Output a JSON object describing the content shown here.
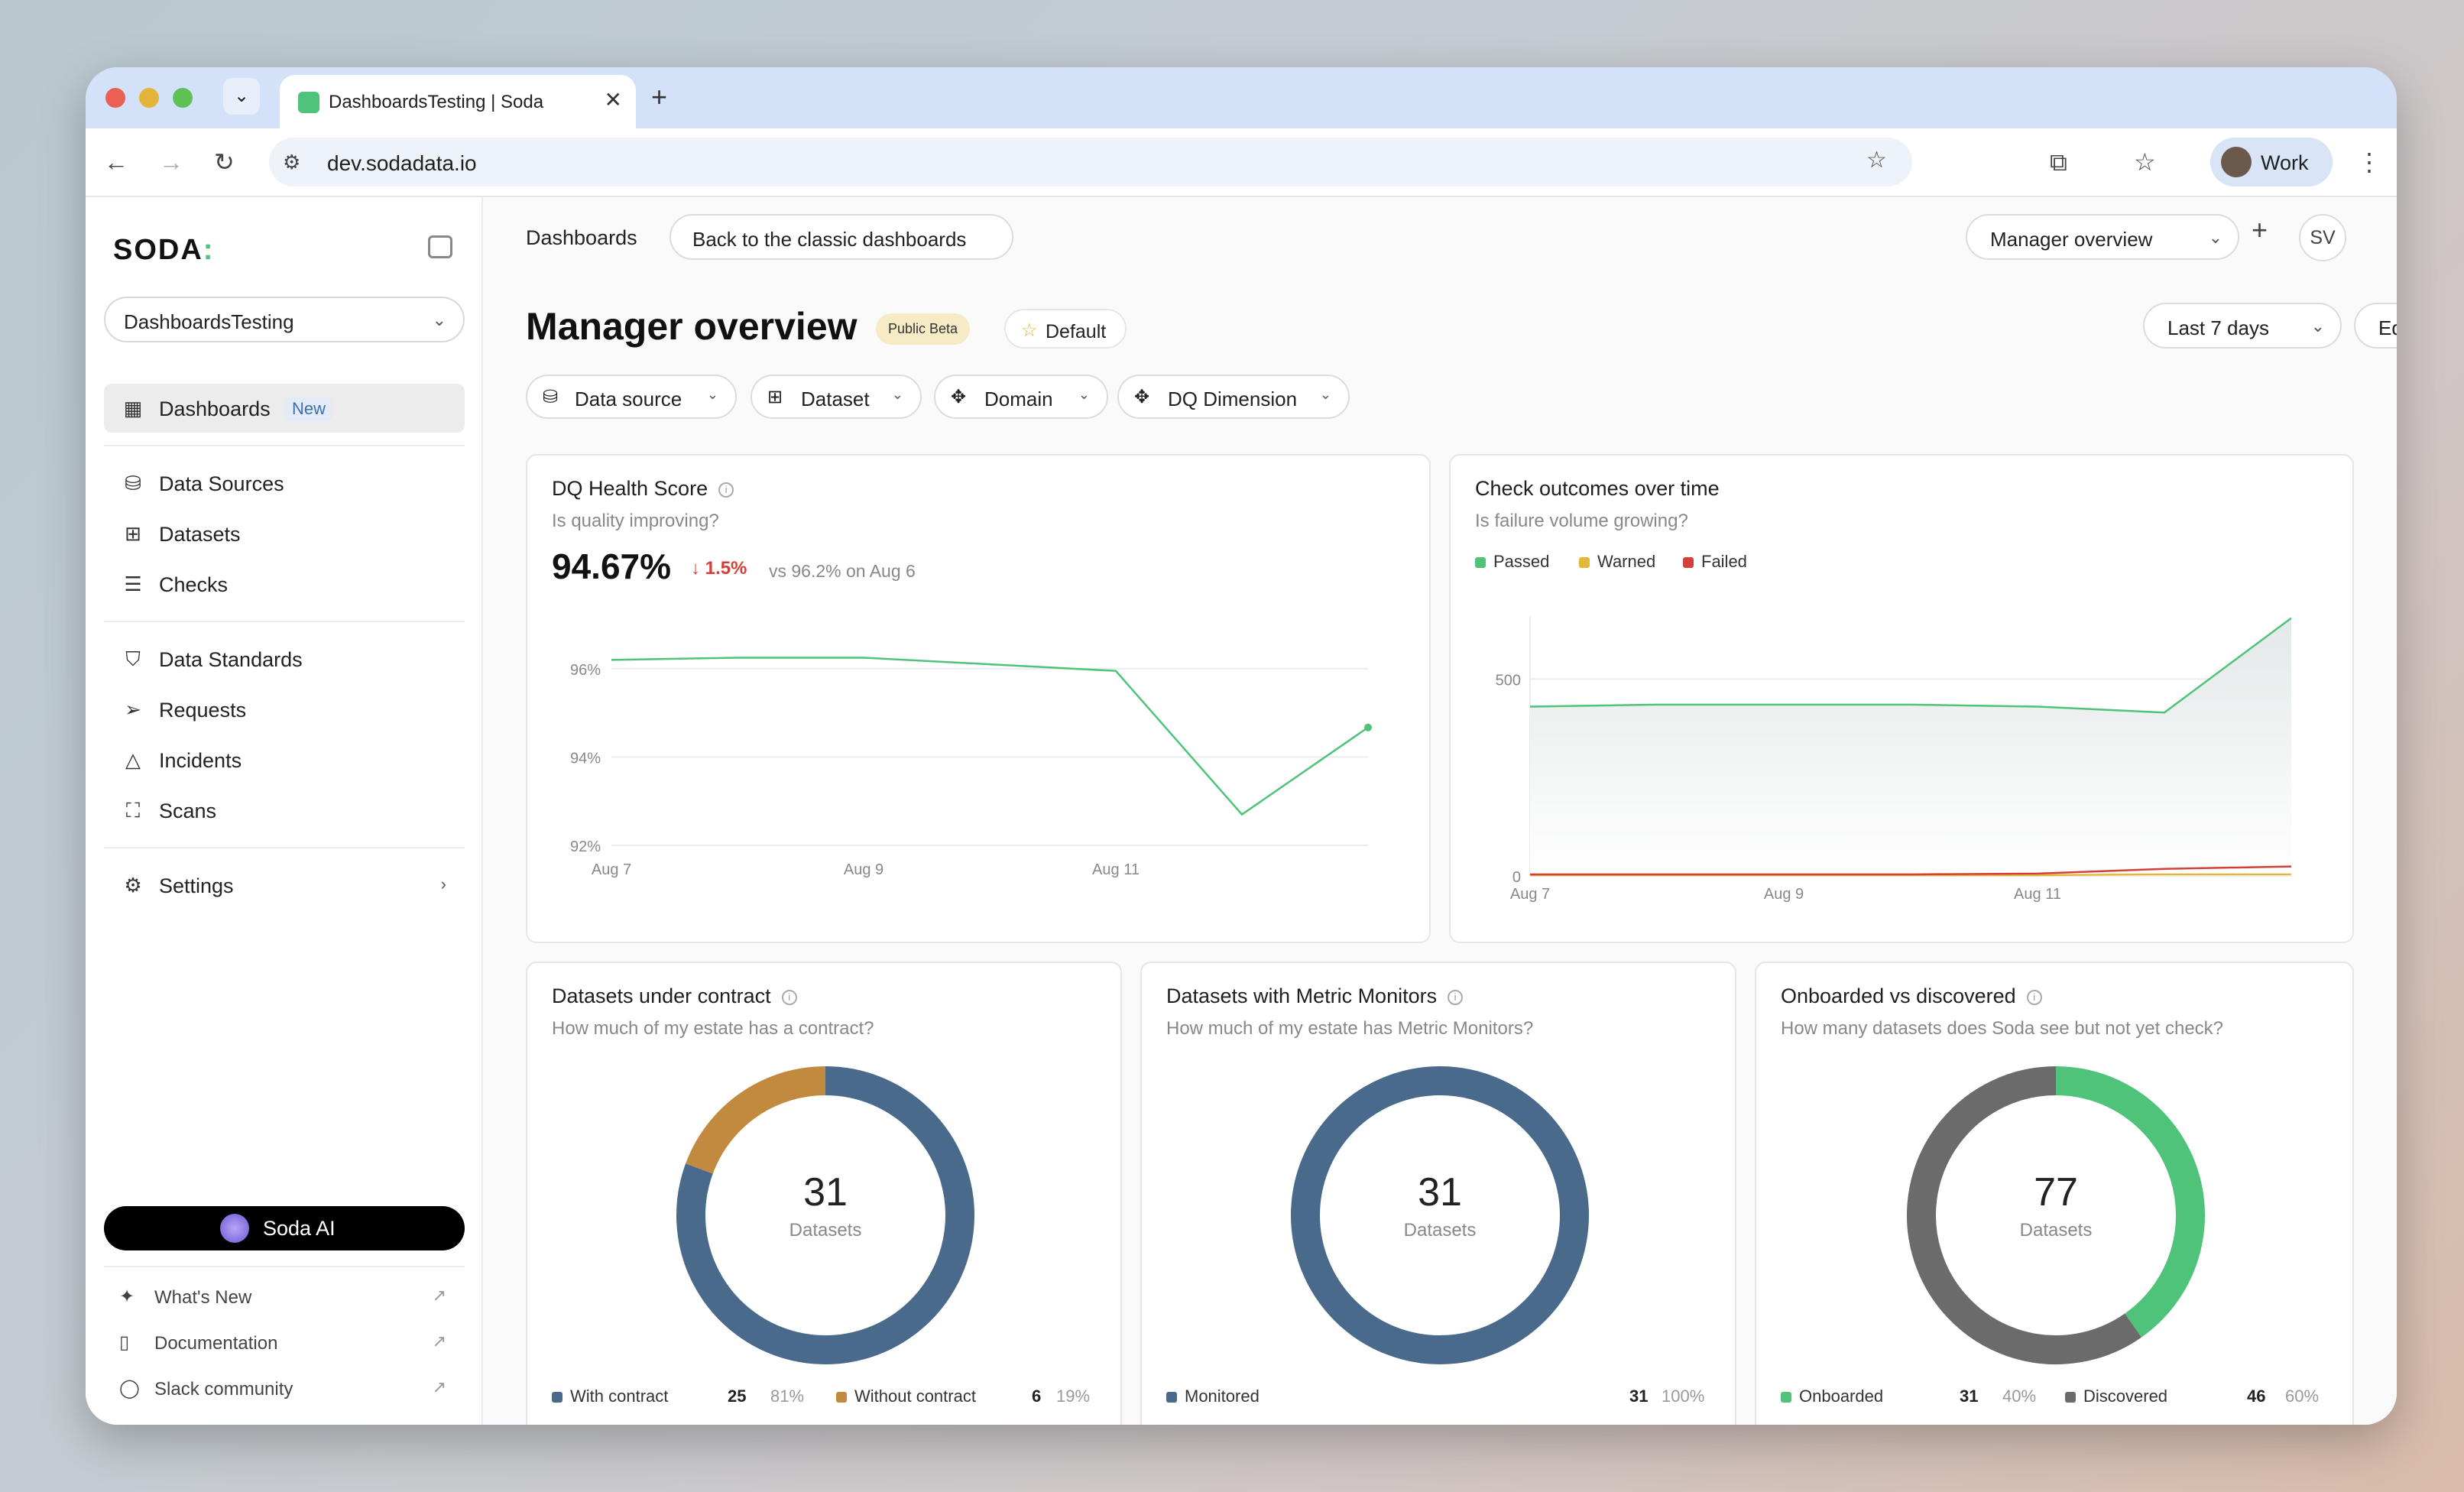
{
  "browser": {
    "tab_title": "DashboardsTesting | Soda",
    "url": "dev.sodadata.io",
    "profile_label": "Work"
  },
  "sidebar": {
    "logo": "SODA",
    "workspace": "DashboardsTesting",
    "nav": [
      {
        "label": "Dashboards",
        "badge": "New",
        "active": true,
        "icon": "dashboard-grid-icon"
      },
      {
        "label": "Data Sources",
        "icon": "database-icon"
      },
      {
        "label": "Datasets",
        "icon": "table-icon"
      },
      {
        "label": "Checks",
        "icon": "checklist-icon"
      },
      {
        "label": "Data Standards",
        "icon": "shield-icon"
      },
      {
        "label": "Requests",
        "icon": "send-icon"
      },
      {
        "label": "Incidents",
        "icon": "warning-icon"
      },
      {
        "label": "Scans",
        "icon": "scan-icon"
      },
      {
        "label": "Settings",
        "icon": "gear-icon"
      }
    ],
    "soda_ai": "Soda AI",
    "footer": [
      {
        "label": "What's New",
        "icon": "sparkle-icon"
      },
      {
        "label": "Documentation",
        "icon": "book-icon"
      },
      {
        "label": "Slack community",
        "icon": "chat-icon"
      }
    ]
  },
  "header": {
    "breadcrumb": "Dashboards",
    "classic_button": "Back to the classic dashboards",
    "dashboard_select": "Manager overview",
    "user_initials": "SV"
  },
  "page": {
    "title": "Manager overview",
    "beta_badge": "Public Beta",
    "default_badge": "Default",
    "date_range": "Last 7 days",
    "edit_button": "Edit",
    "filters": [
      "Data source",
      "Dataset",
      "Domain",
      "DQ Dimension"
    ]
  },
  "colors": {
    "passed": "#4fc37a",
    "warned": "#e3b83a",
    "failed": "#d43f3a",
    "blue": "#4a6a8c",
    "amber": "#c28a3e",
    "grey": "#6b6b6b"
  },
  "cards": {
    "health": {
      "title": "DQ Health Score",
      "subtitle": "Is quality improving?",
      "value": "94.67%",
      "delta": "1.5%",
      "compare": "vs 96.2% on Aug 6"
    },
    "outcomes": {
      "title": "Check outcomes over time",
      "subtitle": "Is failure volume growing?",
      "legend": [
        "Passed",
        "Warned",
        "Failed"
      ]
    },
    "contract": {
      "title": "Datasets under contract",
      "subtitle": "How much of my estate has a contract?",
      "center_value": "31",
      "center_label": "Datasets",
      "legend": [
        {
          "label": "With contract",
          "count": "25",
          "pct": "81%"
        },
        {
          "label": "Without contract",
          "count": "6",
          "pct": "19%"
        }
      ]
    },
    "monitors": {
      "title": "Datasets with Metric Monitors",
      "subtitle": "How much of my estate has Metric Monitors?",
      "center_value": "31",
      "center_label": "Datasets",
      "legend": [
        {
          "label": "Monitored",
          "count": "31",
          "pct": "100%"
        }
      ]
    },
    "onboarded": {
      "title": "Onboarded vs discovered",
      "subtitle": "How many datasets does Soda see but not yet check?",
      "center_value": "77",
      "center_label": "Datasets",
      "legend": [
        {
          "label": "Onboarded",
          "count": "31",
          "pct": "40%"
        },
        {
          "label": "Discovered",
          "count": "46",
          "pct": "60%"
        }
      ]
    }
  },
  "chart_data": [
    {
      "type": "line",
      "ylim": [
        92,
        96.5
      ],
      "yticks": [
        92,
        94,
        96
      ],
      "ytick_labels": [
        "92%",
        "94%",
        "96%"
      ],
      "x": [
        "Aug 7",
        "Aug 8",
        "Aug 9",
        "Aug 10",
        "Aug 11",
        "Aug 12",
        "Aug 13"
      ],
      "xtick_labels": [
        "Aug 7",
        "Aug 9",
        "Aug 11"
      ],
      "series": [
        {
          "values": [
            96.2,
            96.25,
            96.25,
            96.1,
            95.95,
            92.7,
            94.67
          ]
        }
      ]
    },
    {
      "type": "area",
      "ylim": [
        0,
        660
      ],
      "yticks": [
        0,
        500
      ],
      "x": [
        "Aug 7",
        "Aug 8",
        "Aug 9",
        "Aug 10",
        "Aug 11",
        "Aug 12",
        "Aug 13"
      ],
      "xtick_labels": [
        "Aug 7",
        "Aug 9",
        "Aug 11"
      ],
      "series": [
        {
          "name": "Passed",
          "values": [
            430,
            435,
            435,
            435,
            430,
            415,
            655
          ]
        },
        {
          "name": "Warned",
          "values": [
            2,
            2,
            2,
            2,
            2,
            4,
            4
          ]
        },
        {
          "name": "Failed",
          "values": [
            4,
            4,
            4,
            4,
            6,
            18,
            24
          ]
        }
      ]
    },
    {
      "type": "pie",
      "categories": [
        "With contract",
        "Without contract"
      ],
      "values": [
        25,
        6
      ]
    },
    {
      "type": "pie",
      "categories": [
        "Monitored"
      ],
      "values": [
        31
      ]
    },
    {
      "type": "pie",
      "categories": [
        "Onboarded",
        "Discovered"
      ],
      "values": [
        31,
        46
      ]
    }
  ]
}
